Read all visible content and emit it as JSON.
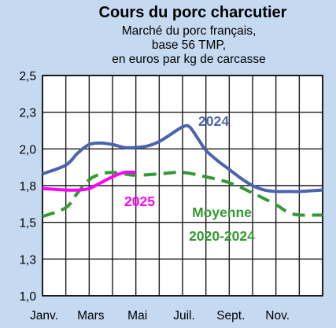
{
  "chart_data": {
    "type": "line",
    "title": "Cours du porc charcutier",
    "subtitle_lines": [
      "Marché du porc français,",
      "base 56 TMP,",
      "en euros par kg de carcasse"
    ],
    "ylim": [
      1.0,
      2.5
    ],
    "yticks": [
      "1,0",
      "1,3",
      "1,5",
      "1,8",
      "2,0",
      "2,3",
      "2,5"
    ],
    "ytick_values": [
      1.0,
      1.25,
      1.5,
      1.75,
      2.0,
      2.25,
      2.5
    ],
    "xlim": [
      0,
      12
    ],
    "xtick_labels": [
      "Janv.",
      "Mars",
      "Mai",
      "Juil.",
      "Sept.",
      "Nov."
    ],
    "xtick_positions": [
      0,
      2,
      4,
      6,
      8,
      10
    ],
    "grid": true,
    "series": [
      {
        "name": "2024",
        "color": "#4a64ad",
        "style": "solid",
        "label_lines": [
          "2024"
        ],
        "points": [
          [
            0,
            1.83
          ],
          [
            1,
            1.89
          ],
          [
            1.5,
            1.97
          ],
          [
            2,
            2.03
          ],
          [
            2.5,
            2.04
          ],
          [
            3,
            2.03
          ],
          [
            3.5,
            2.01
          ],
          [
            4,
            2.01
          ],
          [
            4.5,
            2.02
          ],
          [
            5,
            2.05
          ],
          [
            5.5,
            2.1
          ],
          [
            6,
            2.15
          ],
          [
            6.3,
            2.15
          ],
          [
            6.7,
            2.06
          ],
          [
            7,
            1.99
          ],
          [
            7.5,
            1.92
          ],
          [
            8,
            1.86
          ],
          [
            8.5,
            1.8
          ],
          [
            9,
            1.75
          ],
          [
            9.5,
            1.72
          ],
          [
            10,
            1.71
          ],
          [
            10.5,
            1.71
          ],
          [
            11,
            1.71
          ],
          [
            12,
            1.72
          ]
        ]
      },
      {
        "name": "2025",
        "color": "#ff00ff",
        "style": "solid",
        "label_lines": [
          "2025"
        ],
        "points": [
          [
            0,
            1.73
          ],
          [
            1,
            1.72
          ],
          [
            1.5,
            1.72
          ],
          [
            2,
            1.73
          ],
          [
            2.5,
            1.77
          ],
          [
            3,
            1.81
          ],
          [
            3.5,
            1.84
          ],
          [
            4,
            1.84
          ]
        ]
      },
      {
        "name": "Moyenne 2020-2024",
        "color": "#339933",
        "style": "dashed",
        "label_lines": [
          "Moyenne",
          "2020-2024"
        ],
        "points": [
          [
            0,
            1.54
          ],
          [
            1,
            1.6
          ],
          [
            1.5,
            1.7
          ],
          [
            2,
            1.79
          ],
          [
            2.5,
            1.83
          ],
          [
            3,
            1.84
          ],
          [
            3.5,
            1.83
          ],
          [
            4,
            1.82
          ],
          [
            5,
            1.83
          ],
          [
            6,
            1.84
          ],
          [
            7,
            1.81
          ],
          [
            8,
            1.77
          ],
          [
            9,
            1.7
          ],
          [
            10,
            1.62
          ],
          [
            10.5,
            1.57
          ],
          [
            11,
            1.55
          ],
          [
            12,
            1.55
          ]
        ]
      }
    ]
  }
}
